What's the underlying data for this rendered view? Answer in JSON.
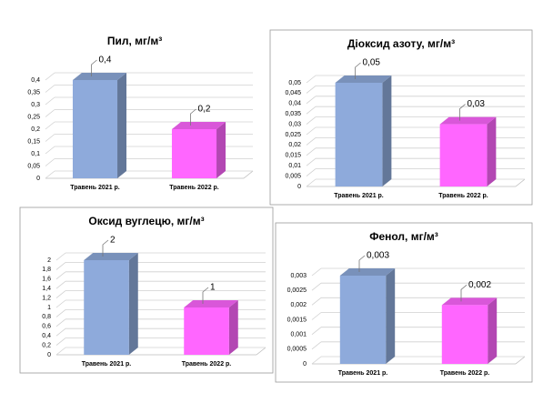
{
  "chart_data": [
    {
      "type": "bar3d",
      "title": "Пил, мг/м³",
      "categories": [
        "Травень 2021 р.",
        "Травень 2022 р."
      ],
      "values": [
        0.4,
        0.2
      ],
      "value_labels": [
        "0,4",
        "0,2"
      ],
      "colors": [
        "#8eaadb",
        "#ff66ff"
      ],
      "ylim": [
        0,
        0.4
      ],
      "yticks": [
        0,
        {
          "value": 0.05,
          "label": "0,05"
        },
        {
          "value": 0.1,
          "label": "0,1"
        },
        {
          "value": 0.15,
          "label": "0,15"
        },
        {
          "value": 0.2,
          "label": "0,2"
        },
        {
          "value": 0.25,
          "label": "0,25"
        },
        {
          "value": 0.3,
          "label": "0,3"
        },
        {
          "value": 0.35,
          "label": "0,35"
        },
        {
          "value": 0.4,
          "label": "0,4"
        }
      ],
      "grid": true
    },
    {
      "type": "bar3d",
      "title": "Діоксид азоту, мг/м³",
      "categories": [
        "Травень 2021 р.",
        "Травень 2022 р."
      ],
      "values": [
        0.05,
        0.03
      ],
      "value_labels": [
        "0,05",
        "0,03"
      ],
      "colors": [
        "#8eaadb",
        "#ff66ff"
      ],
      "ylim": [
        0,
        0.05
      ],
      "yticks": [
        0,
        {
          "value": 0.005,
          "label": "0,005"
        },
        {
          "value": 0.01,
          "label": "0,01"
        },
        {
          "value": 0.015,
          "label": "0,015"
        },
        {
          "value": 0.02,
          "label": "0,02"
        },
        {
          "value": 0.025,
          "label": "0,025"
        },
        {
          "value": 0.03,
          "label": "0,03"
        },
        {
          "value": 0.035,
          "label": "0,035"
        },
        {
          "value": 0.04,
          "label": "0,04"
        },
        {
          "value": 0.045,
          "label": "0,045"
        },
        {
          "value": 0.05,
          "label": "0,05"
        }
      ],
      "grid": true
    },
    {
      "type": "bar3d",
      "title": "Оксид вуглецю, мг/м³",
      "categories": [
        "Травень 2021 р.",
        "Травень 2022 р."
      ],
      "values": [
        2,
        1
      ],
      "colors": [
        "#8eaadb",
        "#ff66ff"
      ],
      "ylim": [
        0,
        2
      ],
      "yticks": [
        0,
        {
          "value": 0.2,
          "label": "0,2"
        },
        {
          "value": 0.4,
          "label": "0,4"
        },
        {
          "value": 0.6,
          "label": "0,6"
        },
        {
          "value": 0.8,
          "label": "0,8"
        },
        1,
        {
          "value": 1.2,
          "label": "1,2"
        },
        {
          "value": 1.4,
          "label": "1,4"
        },
        {
          "value": 1.6,
          "label": "1,6"
        },
        {
          "value": 1.8,
          "label": "1,8"
        },
        2
      ],
      "grid": true
    },
    {
      "type": "bar3d",
      "title": "Фенол, мг/м³",
      "categories": [
        "Травень 2021 р.",
        "Травень 2022 р."
      ],
      "values": [
        0.003,
        0.002
      ],
      "value_labels": [
        "0,003",
        "0,002"
      ],
      "colors": [
        "#8eaadb",
        "#ff66ff"
      ],
      "ylim": [
        0,
        0.003
      ],
      "yticks": [
        0,
        {
          "value": 0.0005,
          "label": "0,0005"
        },
        {
          "value": 0.001,
          "label": "0,001"
        },
        {
          "value": 0.0015,
          "label": "0,0015"
        },
        {
          "value": 0.002,
          "label": "0,002"
        },
        {
          "value": 0.0025,
          "label": "0,0025"
        },
        {
          "value": 0.003,
          "label": "0,003"
        }
      ],
      "grid": true
    }
  ]
}
